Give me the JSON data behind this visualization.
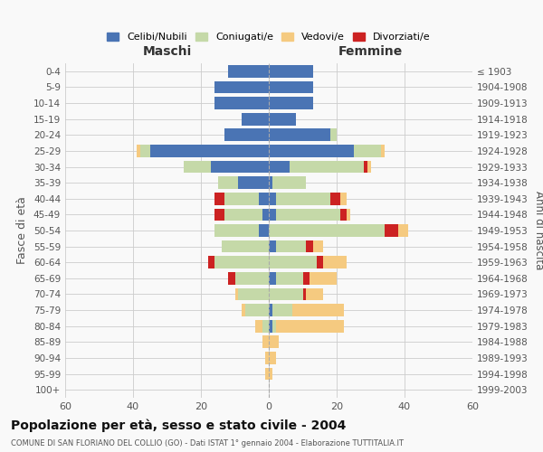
{
  "age_groups": [
    "0-4",
    "5-9",
    "10-14",
    "15-19",
    "20-24",
    "25-29",
    "30-34",
    "35-39",
    "40-44",
    "45-49",
    "50-54",
    "55-59",
    "60-64",
    "65-69",
    "70-74",
    "75-79",
    "80-84",
    "85-89",
    "90-94",
    "95-99",
    "100+"
  ],
  "birth_years": [
    "1999-2003",
    "1994-1998",
    "1989-1993",
    "1984-1988",
    "1979-1983",
    "1974-1978",
    "1969-1973",
    "1964-1968",
    "1959-1963",
    "1954-1958",
    "1949-1953",
    "1944-1948",
    "1939-1943",
    "1934-1938",
    "1929-1933",
    "1924-1928",
    "1919-1923",
    "1914-1918",
    "1909-1913",
    "1904-1908",
    "≤ 1903"
  ],
  "colors": {
    "celibi": "#4a74b4",
    "coniugati": "#c5d9a8",
    "vedovi": "#f5ca80",
    "divorziati": "#cc2222"
  },
  "male": {
    "celibi": [
      12,
      16,
      16,
      8,
      13,
      35,
      17,
      9,
      3,
      2,
      3,
      0,
      0,
      0,
      0,
      0,
      0,
      0,
      0,
      0,
      0
    ],
    "coniugati": [
      0,
      0,
      0,
      0,
      0,
      3,
      8,
      6,
      10,
      11,
      13,
      14,
      16,
      10,
      9,
      7,
      2,
      0,
      0,
      0,
      0
    ],
    "vedovi": [
      0,
      0,
      0,
      0,
      0,
      1,
      0,
      0,
      0,
      0,
      0,
      0,
      0,
      0,
      1,
      1,
      2,
      2,
      1,
      1,
      0
    ],
    "divorziati": [
      0,
      0,
      0,
      0,
      0,
      0,
      0,
      0,
      3,
      3,
      0,
      0,
      2,
      2,
      0,
      0,
      0,
      0,
      0,
      0,
      0
    ]
  },
  "female": {
    "nubili": [
      13,
      13,
      13,
      8,
      18,
      25,
      6,
      1,
      2,
      2,
      0,
      2,
      0,
      2,
      0,
      1,
      1,
      0,
      0,
      0,
      0
    ],
    "coniugate": [
      0,
      0,
      0,
      0,
      2,
      8,
      22,
      10,
      16,
      19,
      34,
      9,
      14,
      8,
      10,
      6,
      1,
      0,
      0,
      0,
      0
    ],
    "vedove": [
      0,
      0,
      0,
      0,
      0,
      1,
      1,
      0,
      2,
      1,
      3,
      3,
      7,
      8,
      5,
      15,
      20,
      3,
      2,
      1,
      0
    ],
    "divorziate": [
      0,
      0,
      0,
      0,
      0,
      0,
      1,
      0,
      3,
      2,
      4,
      2,
      2,
      2,
      1,
      0,
      0,
      0,
      0,
      0,
      0
    ]
  },
  "xlim": 60,
  "title": "Popolazione per età, sesso e stato civile - 2004",
  "subtitle": "COMUNE DI SAN FLORIANO DEL COLLIO (GO) - Dati ISTAT 1° gennaio 2004 - Elaborazione TUTTITALIA.IT",
  "ylabel_left": "Fasce di età",
  "ylabel_right": "Anni di nascita",
  "xlabel_left": "Maschi",
  "xlabel_right": "Femmine",
  "bg_color": "#f9f9f9",
  "grid_color": "#cccccc"
}
